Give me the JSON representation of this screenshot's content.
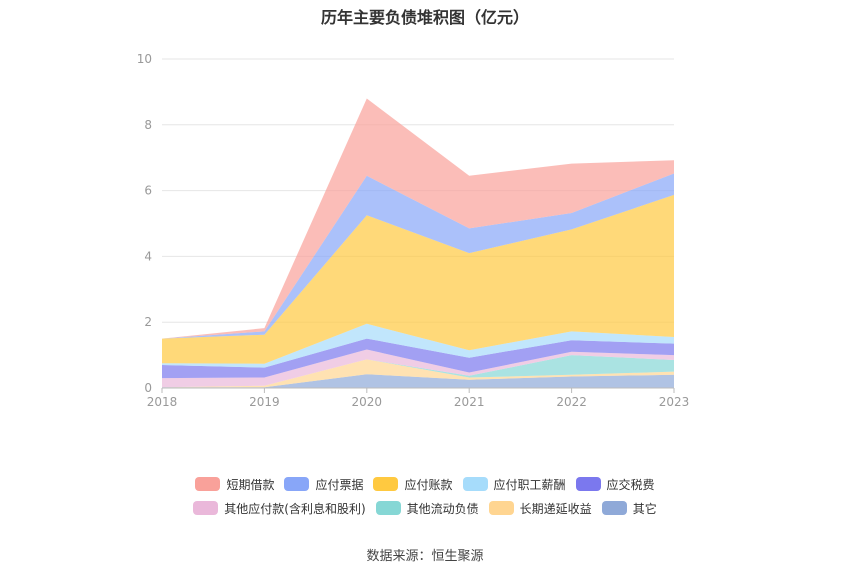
{
  "chart_data": {
    "type": "area",
    "stacked": true,
    "title": "历年主要负债堆积图（亿元）",
    "x": [
      "2018",
      "2019",
      "2020",
      "2021",
      "2022",
      "2023"
    ],
    "ylim": [
      0,
      10
    ],
    "yticks": [
      "0",
      "2",
      "4",
      "6",
      "8",
      "10"
    ],
    "grid": true,
    "legend_position": "bottom",
    "series": [
      {
        "name": "其它",
        "color": "#8fa9d8",
        "values": [
          0.02,
          0.02,
          0.42,
          0.25,
          0.35,
          0.4
        ]
      },
      {
        "name": "长期递延收益",
        "color": "#ffd591",
        "values": [
          0.0,
          0.05,
          0.45,
          0.07,
          0.05,
          0.1
        ]
      },
      {
        "name": "其他流动负债",
        "color": "#86d7d5",
        "values": [
          0.0,
          0.0,
          0.0,
          0.05,
          0.6,
          0.35
        ]
      },
      {
        "name": "其他应付款(含利息和股利)",
        "color": "#eab8da",
        "values": [
          0.28,
          0.25,
          0.3,
          0.1,
          0.1,
          0.15
        ]
      },
      {
        "name": "应交税费",
        "color": "#7b78ee",
        "values": [
          0.4,
          0.3,
          0.33,
          0.45,
          0.35,
          0.35
        ]
      },
      {
        "name": "应付职工薪酬",
        "color": "#a6dcfb",
        "values": [
          0.05,
          0.12,
          0.45,
          0.23,
          0.27,
          0.2
        ]
      },
      {
        "name": "应付账款",
        "color": "#ffc940",
        "values": [
          0.75,
          0.88,
          3.3,
          2.95,
          3.1,
          4.32
        ]
      },
      {
        "name": "应付票据",
        "color": "#88a6f8",
        "values": [
          0.0,
          0.1,
          1.2,
          0.75,
          0.5,
          0.65
        ]
      },
      {
        "name": "短期借款",
        "color": "#f9a19a",
        "values": [
          0.0,
          0.1,
          2.35,
          1.6,
          1.5,
          0.4
        ]
      }
    ],
    "legend_rows": [
      [
        "短期借款",
        "应付票据",
        "应付账款",
        "应付职工薪酬",
        "应交税费"
      ],
      [
        "其他应付款(含利息和股利)",
        "其他流动负债",
        "长期递延收益",
        "其它"
      ]
    ]
  },
  "source_note": "数据来源：恒生聚源"
}
